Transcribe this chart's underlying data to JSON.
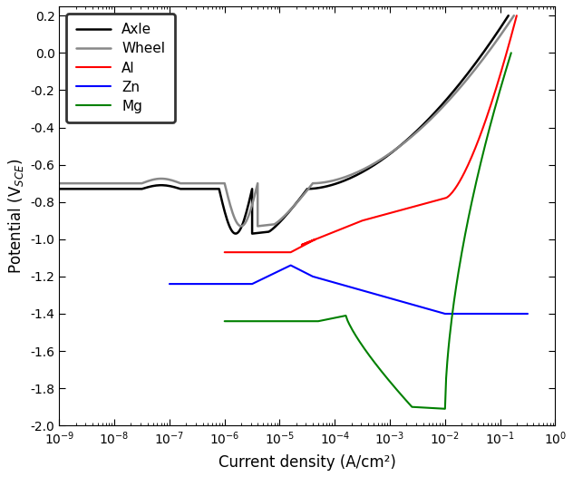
{
  "title": "",
  "xlabel": "Current density (A/cm²)",
  "ylabel": "Potential (V$_{SCE}$)",
  "xlim_log": [
    -9,
    0
  ],
  "ylim": [
    -2.0,
    0.25
  ],
  "yticks": [
    0.2,
    0.0,
    -0.2,
    -0.4,
    -0.6,
    -0.8,
    -1.0,
    -1.2,
    -1.4,
    -1.6,
    -1.8,
    -2.0
  ],
  "legend_labels": [
    "Axle",
    "Wheel",
    "Al",
    "Zn",
    "Mg"
  ],
  "legend_colors": [
    "#000000",
    "#888888",
    "#ff0000",
    "#0000ff",
    "#008000"
  ],
  "background_color": "#ffffff",
  "linewidth": 1.5,
  "figsize": [
    6.32,
    5.26
  ],
  "dpi": 100
}
